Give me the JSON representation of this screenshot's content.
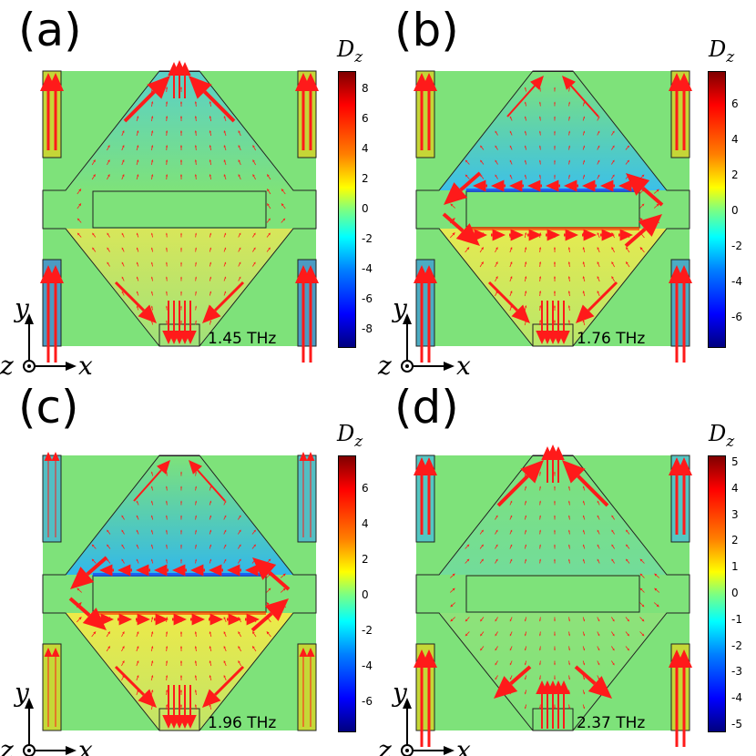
{
  "panels": [
    {
      "label": "(a)",
      "frequency": "1.45 THz",
      "colorbar_title": "D",
      "colorbar_sub": "z",
      "ticks": [
        "8",
        "6",
        "4",
        "2",
        "0",
        "-2",
        "-4",
        "-6",
        "-8"
      ],
      "mode": "a"
    },
    {
      "label": "(b)",
      "frequency": "1.76 THz",
      "colorbar_title": "D",
      "colorbar_sub": "z",
      "ticks": [
        "6",
        "4",
        "2",
        "0",
        "-2",
        "-4",
        "-6"
      ],
      "mode": "b"
    },
    {
      "label": "(c)",
      "frequency": "1.96 THz",
      "colorbar_title": "D",
      "colorbar_sub": "z",
      "ticks": [
        "6",
        "4",
        "2",
        "0",
        "-2",
        "-4",
        "-6"
      ],
      "mode": "c"
    },
    {
      "label": "(d)",
      "frequency": "2.37 THz",
      "colorbar_title": "D",
      "colorbar_sub": "z",
      "ticks": [
        "5",
        "4",
        "3",
        "2",
        "1",
        "0",
        "-1",
        "-2",
        "-3",
        "-4",
        "-5"
      ],
      "mode": "d"
    }
  ],
  "axes": {
    "y": "y",
    "x": "x",
    "z": "z"
  },
  "colors": {
    "background_field": "#7ee27a",
    "arrow": "#ff1a1a",
    "outline": "#222222"
  }
}
